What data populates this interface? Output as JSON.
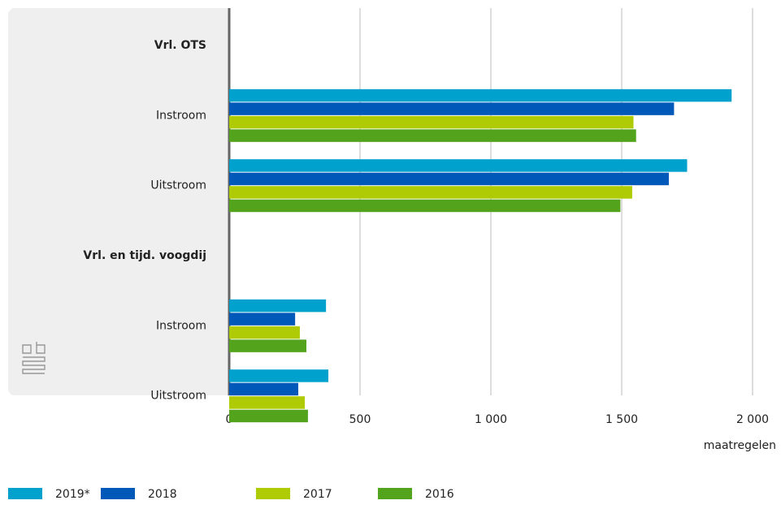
{
  "chart_data": {
    "type": "hbar",
    "categories": [
      "Vrl. OTS",
      "Instroom",
      "Uitstroom",
      "Vrl. en tijd. voogdij",
      "Instroom",
      "Uitstroom"
    ],
    "series": [
      {
        "name": "2019*",
        "color": "#00a1cd",
        "values": [
          null,
          1920,
          1750,
          null,
          370,
          379
        ]
      },
      {
        "name": "2018",
        "color": "#0058b8",
        "values": [
          null,
          1700,
          1680,
          null,
          252,
          264
        ]
      },
      {
        "name": "2017",
        "color": "#afcb05",
        "values": [
          null,
          1545,
          1540,
          null,
          270,
          289
        ]
      },
      {
        "name": "2016",
        "color": "#53a31d",
        "values": [
          null,
          1555,
          1495,
          null,
          295,
          301
        ]
      }
    ],
    "xlabel": "maatregelen",
    "xlim": [
      0,
      2000
    ],
    "xticks": [
      0,
      500,
      {
        "value": 1000,
        "label": "1 000"
      },
      {
        "value": 1500,
        "label": "1 500"
      },
      {
        "value": 2000,
        "label": "2 000"
      }
    ],
    "grid": true,
    "legend": "bottom"
  }
}
